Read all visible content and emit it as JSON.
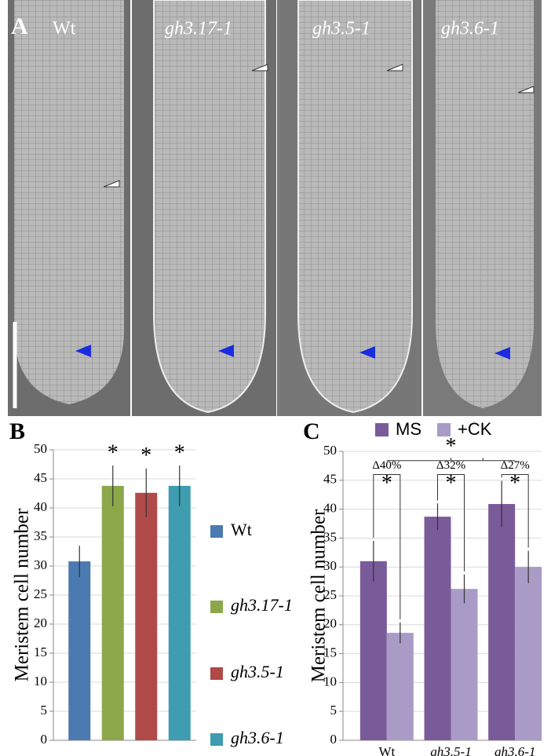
{
  "panel_a": {
    "label": "A",
    "genotypes": [
      "Wt",
      "gh3.17-1",
      "gh3.5-1",
      "gh3.6-1"
    ]
  },
  "chart_data": [
    {
      "type": "bar",
      "panel_label": "B",
      "y_label": "Meristem cell number",
      "categories": [
        "Wt",
        "gh3.17-1",
        "gh3.5-1",
        "gh3.6-1"
      ],
      "values": [
        30.8,
        43.8,
        42.6,
        43.8
      ],
      "errors": [
        2.7,
        3.5,
        4.2,
        3.5
      ],
      "colors": [
        "#4a7ab0",
        "#8ca74a",
        "#b04a48",
        "#3e9db0"
      ],
      "annotations": [
        "*",
        "*",
        "*"
      ],
      "ylim": [
        0,
        50
      ],
      "yticks": [
        0,
        5,
        10,
        15,
        20,
        25,
        30,
        35,
        40,
        45,
        50
      ],
      "grid": true
    },
    {
      "type": "grouped_bar",
      "panel_label": "C",
      "y_label": "Meristem cell number",
      "categories": [
        "Wt",
        "gh3.5-1",
        "gh3.6-1"
      ],
      "series": [
        {
          "name": "MS",
          "color": "#7a5b9a",
          "values": [
            31,
            38.7,
            40.9
          ],
          "errors": [
            3.5,
            2.3,
            4
          ]
        },
        {
          "name": "+CK",
          "color": "#a99bc6",
          "values": [
            18.6,
            26.2,
            30
          ],
          "errors": [
            1.8,
            2.5,
            2.8
          ]
        }
      ],
      "annotations": [
        "Δ40%",
        "Δ32%",
        "Δ27%"
      ],
      "significance": [
        "*",
        "*",
        "*",
        "*"
      ],
      "ylim": [
        0,
        50
      ],
      "yticks": [
        0,
        5,
        10,
        15,
        20,
        25,
        30,
        35,
        40,
        45,
        50
      ],
      "grid": true
    }
  ]
}
